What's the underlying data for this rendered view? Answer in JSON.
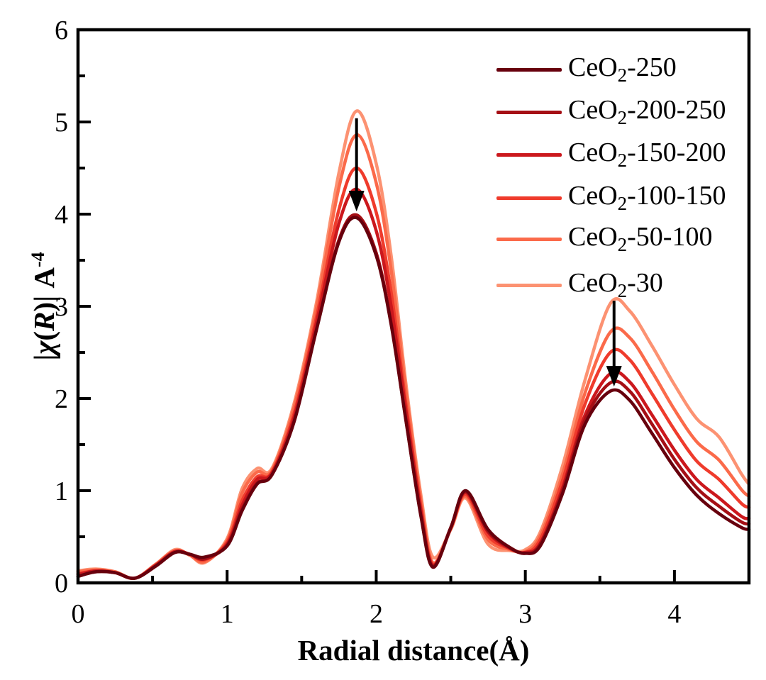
{
  "figure": {
    "background": "#ffffff",
    "frame_color": "#000000",
    "arrow_color": "#000000",
    "xlabel": "Radial distance(Å)",
    "ylabel": {
      "bar_open": "|",
      "chi": "χ",
      "paren_open": "(",
      "r_symbol": "R",
      "paren_close": ")|",
      "unit": " A",
      "sup": "-4"
    }
  },
  "legend": {
    "position": "upper-right",
    "items": [
      {
        "label": "CeO2-250",
        "color": "#67000d"
      },
      {
        "label": "CeO2-200-250",
        "color": "#a50f15"
      },
      {
        "label": "CeO2-150-200",
        "color": "#cb181d"
      },
      {
        "label": "CeO2-100-150",
        "color": "#ef3b2c"
      },
      {
        "label": "CeO2-50-100",
        "color": "#fb6a4a"
      },
      {
        "label": "CeO2-30",
        "color": "#fc9272"
      }
    ]
  },
  "chart_data": {
    "type": "line",
    "title": "",
    "xlabel": "Radial distance(Å)",
    "ylabel": "|χ(R)| A^-4",
    "xlim": [
      0,
      4.5
    ],
    "ylim": [
      0,
      6
    ],
    "grid": false,
    "legend_position": "upper right",
    "x_major_ticks": [
      0,
      1,
      2,
      3,
      4
    ],
    "x_minor_ticks": [
      0.5,
      1.5,
      2.5,
      3.5
    ],
    "x_tick_labels": [
      "0",
      "1",
      "2",
      "3",
      "4"
    ],
    "y_major_ticks": [
      0,
      1,
      2,
      3,
      4,
      5,
      6
    ],
    "y_minor_ticks": [
      0.5,
      1.5,
      2.5,
      3.5,
      4.5,
      5.5
    ],
    "y_tick_labels": [
      "0",
      "1",
      "2",
      "3",
      "4",
      "5",
      "6"
    ],
    "x": [
      0,
      0.12,
      0.25,
      0.38,
      0.52,
      0.65,
      0.75,
      0.85,
      1,
      1.1,
      1.2,
      1.3,
      1.45,
      1.6,
      1.75,
      1.87,
      2,
      2.1,
      2.2,
      2.3,
      2.38,
      2.5,
      2.6,
      2.75,
      2.9,
      3,
      3.1,
      3.25,
      3.4,
      3.57,
      3.7,
      3.85,
      4,
      4.15,
      4.3,
      4.45,
      4.5
    ],
    "series": [
      {
        "name": "CeO2-250",
        "color": "#67000d",
        "peak1": 3.96,
        "peak2": 2.08,
        "values": [
          0.07,
          0.12,
          0.11,
          0.05,
          0.18,
          0.33,
          0.31,
          0.28,
          0.4,
          0.78,
          1.07,
          1.17,
          1.75,
          2.75,
          3.7,
          3.96,
          3.55,
          2.8,
          1.75,
          0.72,
          0.17,
          0.6,
          1.0,
          0.58,
          0.38,
          0.32,
          0.4,
          0.97,
          1.72,
          2.08,
          1.98,
          1.62,
          1.25,
          0.95,
          0.75,
          0.6,
          0.58
        ]
      },
      {
        "name": "CeO2-200-250",
        "color": "#a50f15",
        "peak1": 3.99,
        "peak2": 2.17,
        "values": [
          0.07,
          0.12,
          0.11,
          0.05,
          0.18,
          0.33,
          0.31,
          0.26,
          0.41,
          0.8,
          1.08,
          1.17,
          1.76,
          2.76,
          3.72,
          3.99,
          3.58,
          2.82,
          1.76,
          0.73,
          0.18,
          0.6,
          0.99,
          0.56,
          0.38,
          0.32,
          0.42,
          1.0,
          1.77,
          2.17,
          2.08,
          1.72,
          1.34,
          1.03,
          0.83,
          0.66,
          0.64
        ]
      },
      {
        "name": "CeO2-150-200",
        "color": "#cb181d",
        "peak1": 4.27,
        "peak2": 2.27,
        "values": [
          0.09,
          0.13,
          0.11,
          0.05,
          0.19,
          0.34,
          0.31,
          0.26,
          0.42,
          0.84,
          1.12,
          1.19,
          1.8,
          2.83,
          3.9,
          4.27,
          3.82,
          3.0,
          1.86,
          0.78,
          0.19,
          0.6,
          0.98,
          0.55,
          0.37,
          0.33,
          0.43,
          1.03,
          1.82,
          2.27,
          2.18,
          1.82,
          1.44,
          1.12,
          0.92,
          0.72,
          0.7
        ]
      },
      {
        "name": "CeO2-100-150",
        "color": "#ef3b2c",
        "peak1": 4.5,
        "peak2": 2.5,
        "values": [
          0.1,
          0.13,
          0.11,
          0.05,
          0.19,
          0.34,
          0.31,
          0.25,
          0.44,
          0.89,
          1.15,
          1.2,
          1.84,
          2.89,
          4.05,
          4.5,
          4.02,
          3.15,
          1.93,
          0.82,
          0.2,
          0.59,
          0.96,
          0.51,
          0.37,
          0.33,
          0.47,
          1.11,
          1.94,
          2.5,
          2.42,
          2.05,
          1.66,
          1.32,
          1.12,
          0.86,
          0.82
        ]
      },
      {
        "name": "CeO2-50-100",
        "color": "#fb6a4a",
        "peak1": 4.86,
        "peak2": 2.72,
        "values": [
          0.12,
          0.14,
          0.12,
          0.05,
          0.2,
          0.35,
          0.3,
          0.23,
          0.46,
          0.97,
          1.2,
          1.22,
          1.91,
          2.99,
          4.29,
          4.86,
          4.34,
          3.39,
          2.07,
          0.89,
          0.22,
          0.59,
          0.94,
          0.47,
          0.36,
          0.34,
          0.51,
          1.18,
          2.06,
          2.72,
          2.66,
          2.29,
          1.88,
          1.53,
          1.33,
          1.01,
          0.94
        ]
      },
      {
        "name": "CeO2-30",
        "color": "#fc9272",
        "peak1": 5.12,
        "peak2": 3.03,
        "values": [
          0.13,
          0.15,
          0.12,
          0.05,
          0.2,
          0.36,
          0.3,
          0.22,
          0.48,
          1.02,
          1.24,
          1.24,
          1.95,
          3.05,
          4.45,
          5.12,
          4.55,
          3.55,
          2.15,
          0.95,
          0.28,
          0.58,
          0.92,
          0.42,
          0.35,
          0.36,
          0.55,
          1.27,
          2.2,
          3.03,
          2.95,
          2.57,
          2.15,
          1.78,
          1.58,
          1.18,
          1.07
        ]
      }
    ],
    "annotations": {
      "arrows": [
        {
          "x": 1.868,
          "y_from": 5.04,
          "y_to": 4.03
        },
        {
          "x": 3.595,
          "y_from": 3.06,
          "y_to": 2.13
        }
      ]
    }
  }
}
